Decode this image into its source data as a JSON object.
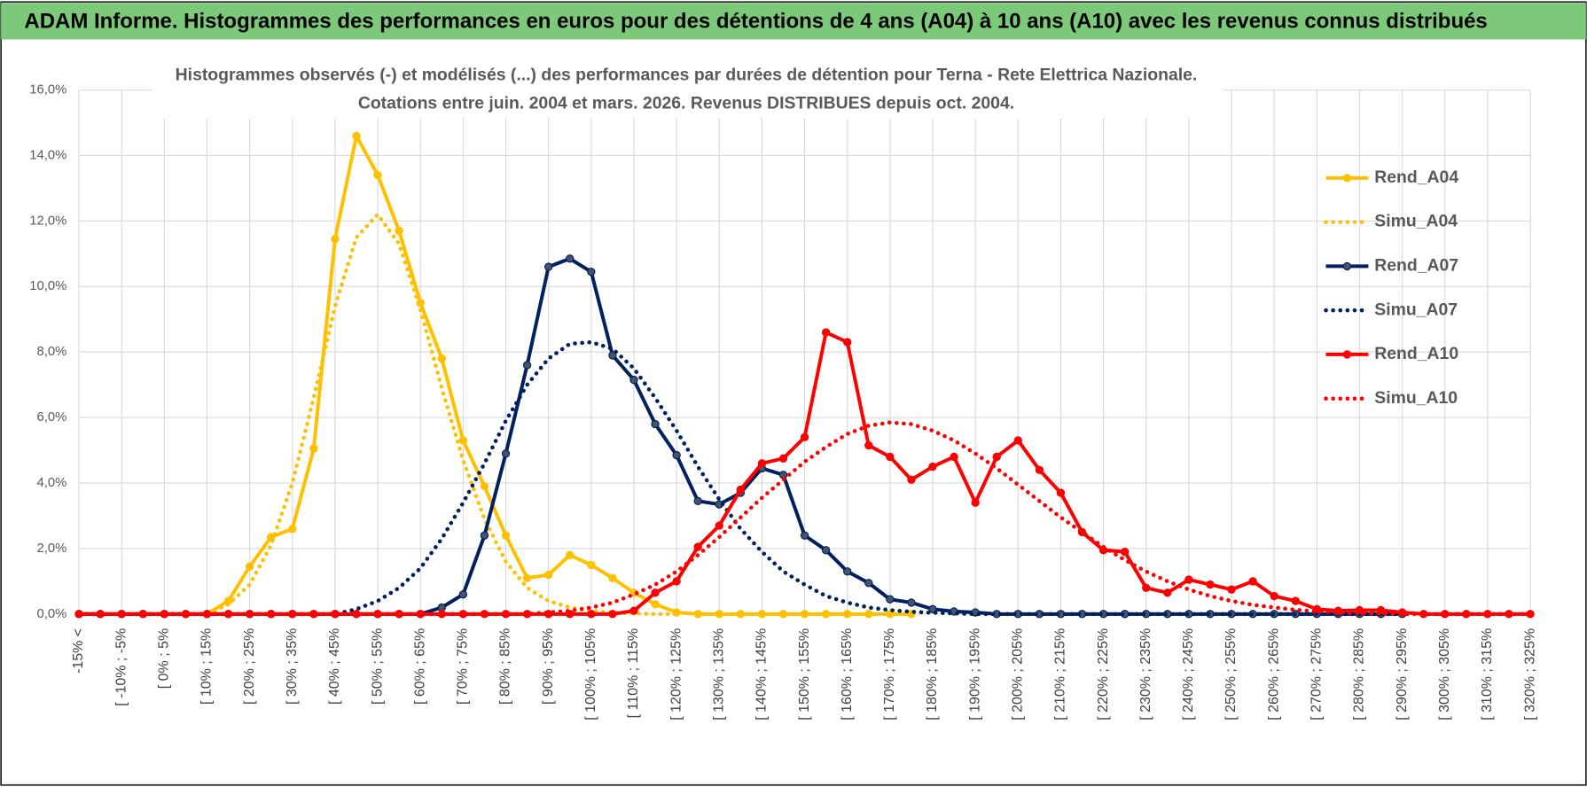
{
  "header": {
    "title": "ADAM Informe. Histogrammes des performances en euros pour des détentions de 4 ans (A04) à 10 ans (A10) avec les revenus connus distribués"
  },
  "chart_data": {
    "type": "line",
    "title": "Histogrammes observés (-) et modélisés (...) des performances par durées de détention pour Terna - Rete Elettrica Nazionale.",
    "subtitle": "Cotations entre juin. 2004 et mars. 2026. Revenus DISTRIBUES depuis oct. 2004.",
    "categories": [
      "-15% <",
      null,
      "[ -10% ; -5%",
      null,
      "[ 0% ; 5%",
      null,
      "[ 10% ; 15%",
      null,
      "[ 20% ; 25%",
      null,
      "[ 30% ; 35%",
      null,
      "[ 40% ; 45%",
      null,
      "[ 50% ; 55%",
      null,
      "[ 60% ; 65%",
      null,
      "[ 70% ; 75%",
      null,
      "[ 80% ; 85%",
      null,
      "[ 90% ; 95%",
      null,
      "[ 100% ; 105%",
      null,
      "[ 110% ; 115%",
      null,
      "[ 120% ; 125%",
      null,
      "[ 130% ; 135%",
      null,
      "[ 140% ; 145%",
      null,
      "[ 150% ; 155%",
      null,
      "[ 160% ; 165%",
      null,
      "[ 170% ; 175%",
      null,
      "[ 180% ; 185%",
      null,
      "[ 190% ; 195%",
      null,
      "[ 200% ; 205%",
      null,
      "[ 210% ; 215%",
      null,
      "[ 220% ; 225%",
      null,
      "[ 230% ; 235%",
      null,
      "[ 240% ; 245%",
      null,
      "[ 250% ; 255%",
      null,
      "[ 260% ; 265%",
      null,
      "[ 270% ; 275%",
      null,
      "[ 280% ; 285%",
      null,
      "[ 290% ; 295%",
      null,
      "[ 300% ; 305%",
      null,
      "[ 310% ; 315%",
      null,
      "[ 320% ; 325%"
    ],
    "ylim": [
      0,
      16
    ],
    "yticks": [
      {
        "value": 0,
        "label": "0,0%"
      },
      {
        "value": 2,
        "label": "2,0%"
      },
      {
        "value": 4,
        "label": "4,0%"
      },
      {
        "value": 6,
        "label": "6,0%"
      },
      {
        "value": 8,
        "label": "8,0%"
      },
      {
        "value": 10,
        "label": "10,0%"
      },
      {
        "value": 12,
        "label": "12,0%"
      },
      {
        "value": 14,
        "label": "14,0%"
      },
      {
        "value": 16,
        "label": "16,0%"
      }
    ],
    "grid": true,
    "legend": "right",
    "series": [
      {
        "name": "Rend_A04",
        "color": "#FFC000",
        "style": "solid",
        "marker": true,
        "values": [
          0,
          0,
          0,
          0,
          0,
          0,
          0,
          0.4,
          1.45,
          2.35,
          2.6,
          5.05,
          11.45,
          14.6,
          13.4,
          11.7,
          9.5,
          7.8,
          5.3,
          3.9,
          2.4,
          1.1,
          1.2,
          1.8,
          1.5,
          1.1,
          0.65,
          0.3,
          0.05,
          0,
          0,
          0,
          0,
          0,
          0,
          0,
          0,
          0,
          0,
          0,
          null,
          null,
          null,
          null,
          null,
          null,
          null,
          null,
          null,
          null,
          null,
          null,
          null,
          null,
          null,
          null,
          null,
          null,
          null,
          null,
          null,
          null,
          null,
          null,
          null,
          null,
          null,
          null,
          null
        ]
      },
      {
        "name": "Simu_A04",
        "color": "#FFC000",
        "style": "dotted",
        "marker": false,
        "values": [
          0,
          0,
          0,
          0,
          0,
          0,
          0,
          0.3,
          0.9,
          2.1,
          4.0,
          6.6,
          9.4,
          11.5,
          12.2,
          11.3,
          9.3,
          6.9,
          4.7,
          2.9,
          1.6,
          0.8,
          0.4,
          0.2,
          0.1,
          0.04,
          0.02,
          0,
          0,
          null,
          null,
          null,
          null,
          null,
          null,
          null,
          null,
          null,
          null,
          null,
          null,
          null,
          null,
          null,
          null,
          null,
          null,
          null,
          null,
          null,
          null,
          null,
          null,
          null,
          null,
          null,
          null,
          null,
          null,
          null,
          null,
          null,
          null,
          null,
          null,
          null,
          null,
          null,
          null
        ]
      },
      {
        "name": "Rend_A07",
        "color": "#002060",
        "style": "solid",
        "marker": true,
        "values": [
          0,
          0,
          0,
          0,
          0,
          0,
          0,
          0,
          0,
          0,
          0,
          0,
          0,
          0,
          0,
          0,
          0,
          0.2,
          0.6,
          2.4,
          4.9,
          7.6,
          10.6,
          10.85,
          10.45,
          7.9,
          7.15,
          5.8,
          4.85,
          3.45,
          3.35,
          3.7,
          4.45,
          4.25,
          2.4,
          1.95,
          1.3,
          0.95,
          0.45,
          0.35,
          0.15,
          0.08,
          0.05,
          0,
          0,
          0,
          0,
          0,
          0,
          0,
          0,
          0,
          0,
          0,
          0,
          0,
          0,
          0,
          0,
          0,
          0,
          0,
          0,
          null,
          null,
          null,
          null,
          null,
          null
        ]
      },
      {
        "name": "Simu_A07",
        "color": "#002060",
        "style": "dotted",
        "marker": false,
        "values": [
          0,
          0,
          0,
          0,
          0,
          0,
          0,
          0,
          0,
          0,
          0,
          0,
          0,
          0.15,
          0.4,
          0.8,
          1.4,
          2.3,
          3.4,
          4.6,
          5.9,
          7.0,
          7.8,
          8.25,
          8.3,
          8.1,
          7.5,
          6.6,
          5.6,
          4.5,
          3.5,
          2.6,
          1.9,
          1.3,
          0.9,
          0.55,
          0.35,
          0.2,
          0.12,
          0.07,
          0.04,
          0.02,
          0,
          0,
          0,
          0,
          0,
          0,
          0,
          0,
          0,
          0,
          0,
          0,
          0,
          0,
          0,
          0,
          0,
          0,
          0,
          0,
          0,
          null,
          null,
          null,
          null,
          null,
          null
        ]
      },
      {
        "name": "Rend_A10",
        "color": "#FF0000",
        "style": "solid",
        "marker": true,
        "values": [
          0,
          0,
          0,
          0,
          0,
          0,
          0,
          0,
          0,
          0,
          0,
          0,
          0,
          0,
          0,
          0,
          0,
          0,
          0,
          0,
          0,
          0,
          0,
          0,
          0,
          0,
          0.1,
          0.65,
          1.0,
          2.05,
          2.7,
          3.8,
          4.6,
          4.75,
          5.4,
          8.6,
          8.3,
          5.15,
          4.8,
          4.1,
          4.5,
          4.8,
          3.4,
          4.8,
          5.3,
          4.4,
          3.7,
          2.5,
          1.95,
          1.9,
          0.8,
          0.65,
          1.05,
          0.9,
          0.75,
          1.0,
          0.55,
          0.4,
          0.15,
          0.1,
          0.12,
          0.12,
          0.05,
          0,
          0,
          0,
          0,
          0,
          0
        ]
      },
      {
        "name": "Simu_A10",
        "color": "#FF0000",
        "style": "dotted",
        "marker": false,
        "values": [
          0,
          0,
          0,
          0,
          0,
          0,
          0,
          0,
          0,
          0,
          0,
          0,
          0,
          0,
          0,
          0,
          0,
          0,
          0,
          0,
          0,
          0,
          0.05,
          0.1,
          0.2,
          0.35,
          0.6,
          0.9,
          1.3,
          1.8,
          2.35,
          2.95,
          3.55,
          4.1,
          4.65,
          5.1,
          5.5,
          5.75,
          5.85,
          5.8,
          5.6,
          5.3,
          4.9,
          4.45,
          3.95,
          3.45,
          2.95,
          2.5,
          2.05,
          1.65,
          1.3,
          1.0,
          0.75,
          0.55,
          0.4,
          0.28,
          0.2,
          0.13,
          0.08,
          0.05,
          0.03,
          0.02,
          0,
          0,
          0,
          0,
          0,
          0,
          0
        ]
      }
    ]
  }
}
